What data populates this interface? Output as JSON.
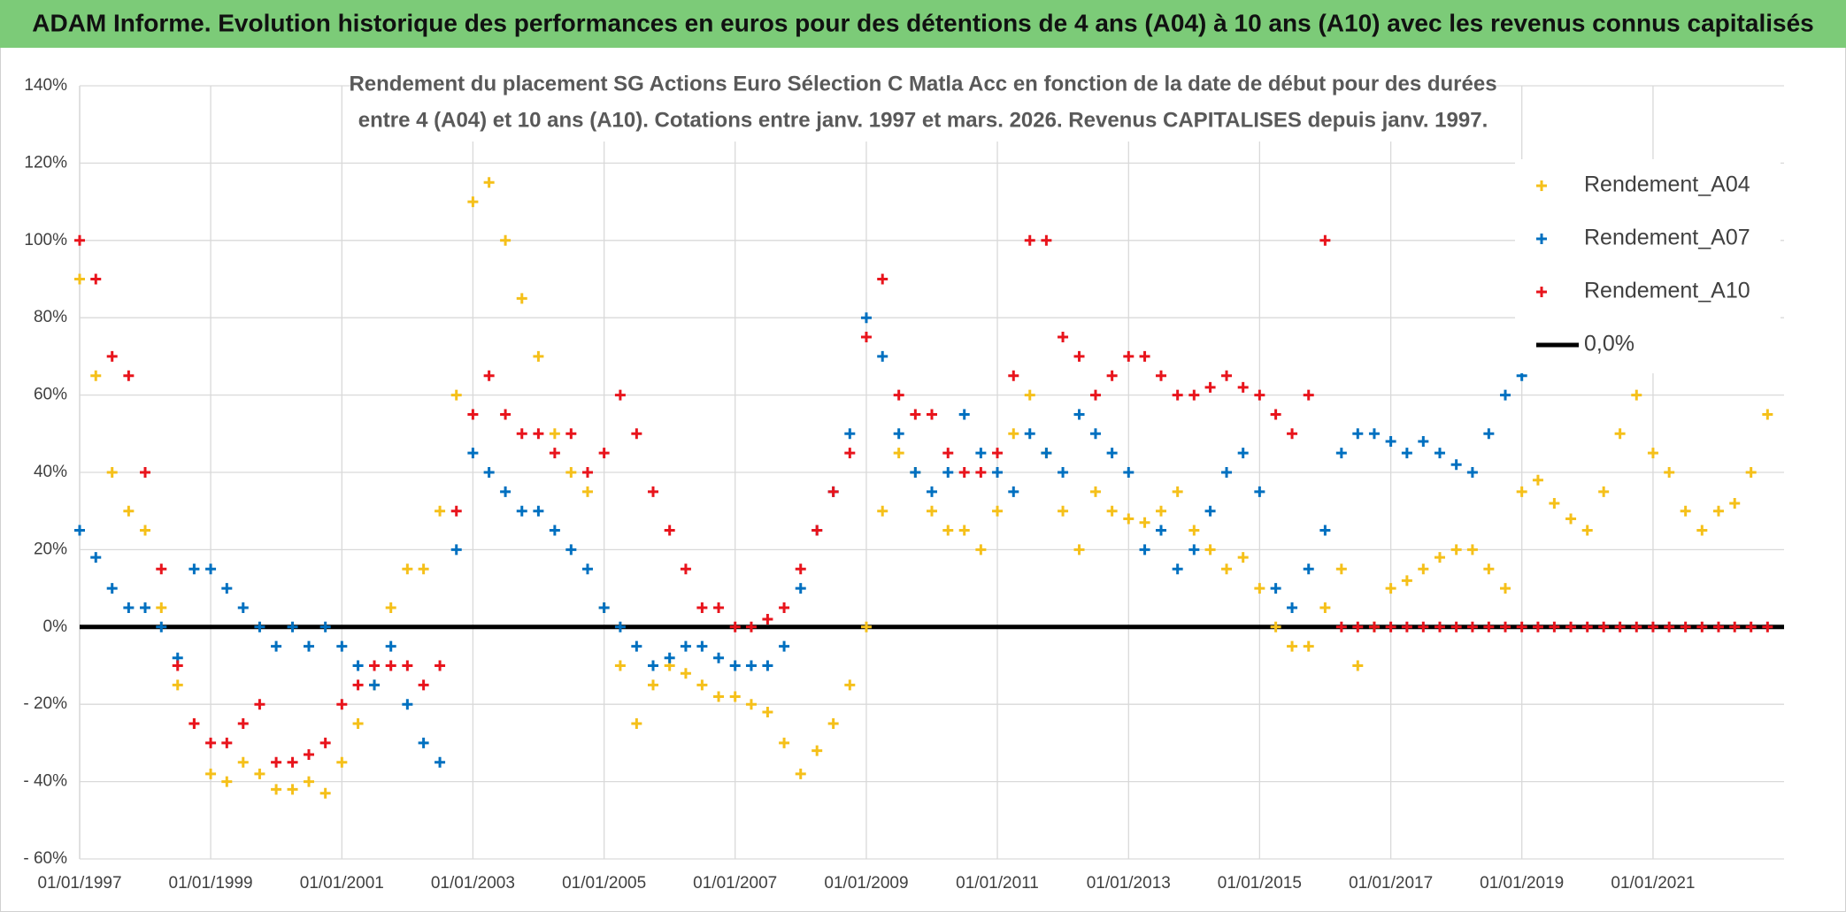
{
  "chart_data": {
    "type": "scatter",
    "title": "ADAM Informe. Evolution historique des performances en euros pour des détentions de 4 ans (A04) à 10 ans (A10) avec les revenus connus capitalisés",
    "subtitle": [
      "Rendement du placement SG Actions Euro Sélection C Matla Acc en fonction de la date de début pour des durées",
      "entre 4 (A04) et 10 ans (A10). Cotations entre janv. 1997 et mars. 2026. Revenus CAPITALISES depuis janv. 1997."
    ],
    "x": [
      "01/01/1997",
      "01/04/1997",
      "01/07/1997",
      "01/10/1997",
      "01/01/1998",
      "01/04/1998",
      "01/07/1998",
      "01/10/1998",
      "01/01/1999",
      "01/04/1999",
      "01/07/1999",
      "01/10/1999",
      "01/01/2000",
      "01/04/2000",
      "01/07/2000",
      "01/10/2000",
      "01/01/2001",
      "01/04/2001",
      "01/07/2001",
      "01/10/2001",
      "01/01/2002",
      "01/04/2002",
      "01/07/2002",
      "01/10/2002",
      "01/01/2003",
      "01/04/2003",
      "01/07/2003",
      "01/10/2003",
      "01/01/2004",
      "01/04/2004",
      "01/07/2004",
      "01/10/2004",
      "01/01/2005",
      "01/04/2005",
      "01/07/2005",
      "01/10/2005",
      "01/01/2006",
      "01/04/2006",
      "01/07/2006",
      "01/10/2006",
      "01/01/2007",
      "01/04/2007",
      "01/07/2007",
      "01/10/2007",
      "01/01/2008",
      "01/04/2008",
      "01/07/2008",
      "01/10/2008",
      "01/01/2009",
      "01/04/2009",
      "01/07/2009",
      "01/10/2009",
      "01/01/2010",
      "01/04/2010",
      "01/07/2010",
      "01/10/2010",
      "01/01/2011",
      "01/04/2011",
      "01/07/2011",
      "01/10/2011",
      "01/01/2012",
      "01/04/2012",
      "01/07/2012",
      "01/10/2012",
      "01/01/2013",
      "01/04/2013",
      "01/07/2013",
      "01/10/2013",
      "01/01/2014",
      "01/04/2014",
      "01/07/2014",
      "01/10/2014",
      "01/01/2015",
      "01/04/2015",
      "01/07/2015",
      "01/10/2015",
      "01/01/2016",
      "01/04/2016",
      "01/07/2016",
      "01/10/2016",
      "01/01/2017",
      "01/04/2017",
      "01/07/2017",
      "01/10/2017",
      "01/01/2018",
      "01/04/2018",
      "01/07/2018",
      "01/10/2018",
      "01/01/2019",
      "01/04/2019",
      "01/07/2019",
      "01/10/2019",
      "01/01/2020",
      "01/04/2020",
      "01/07/2020",
      "01/10/2020",
      "01/01/2021",
      "01/04/2021",
      "01/07/2021",
      "01/10/2021",
      "01/01/2022",
      "01/04/2022",
      "01/07/2022",
      "01/10/2022"
    ],
    "series": [
      {
        "name": "Rendement_A04",
        "color": "#f5c01a",
        "values": [
          90,
          65,
          40,
          30,
          25,
          5,
          -15,
          -25,
          -38,
          -40,
          -35,
          -38,
          -42,
          -42,
          -40,
          -43,
          -35,
          -25,
          -15,
          5,
          15,
          15,
          30,
          60,
          110,
          115,
          100,
          85,
          70,
          50,
          40,
          35,
          5,
          -10,
          -25,
          -15,
          -10,
          -12,
          -15,
          -18,
          -18,
          -20,
          -22,
          -30,
          -38,
          -32,
          -25,
          -15,
          0,
          30,
          45,
          40,
          30,
          25,
          25,
          20,
          30,
          50,
          60,
          45,
          30,
          20,
          35,
          30,
          28,
          27,
          30,
          35,
          25,
          20,
          15,
          18,
          10,
          0,
          -5,
          -5,
          5,
          15,
          -10,
          0,
          10,
          12,
          15,
          18,
          20,
          20,
          15,
          10,
          35,
          38,
          32,
          28,
          25,
          35,
          50,
          60,
          45,
          40,
          30,
          25,
          30,
          32,
          40,
          55
        ]
      },
      {
        "name": "Rendement_A07",
        "color": "#0070c0",
        "values": [
          25,
          18,
          10,
          5,
          5,
          0,
          -8,
          15,
          15,
          10,
          5,
          0,
          -5,
          0,
          -5,
          0,
          -5,
          -10,
          -15,
          -5,
          -20,
          -30,
          -35,
          20,
          45,
          40,
          35,
          30,
          30,
          25,
          20,
          15,
          5,
          0,
          -5,
          -10,
          -8,
          -5,
          -5,
          -8,
          -10,
          -10,
          -10,
          -5,
          10,
          25,
          35,
          50,
          80,
          70,
          50,
          40,
          35,
          40,
          55,
          45,
          40,
          35,
          50,
          45,
          40,
          55,
          50,
          45,
          40,
          20,
          25,
          15,
          20,
          30,
          40,
          45,
          35,
          10,
          5,
          15,
          25,
          45,
          50,
          50,
          48,
          45,
          48,
          45,
          42,
          40,
          50,
          60,
          65,
          null,
          null,
          null,
          null,
          null,
          null,
          null,
          null,
          null,
          null,
          null,
          null,
          null,
          null,
          null
        ]
      },
      {
        "name": "Rendement_A10",
        "color": "#e8141c",
        "values": [
          100,
          90,
          70,
          65,
          40,
          15,
          -10,
          -25,
          -30,
          -30,
          -25,
          -20,
          -35,
          -35,
          -33,
          -30,
          -20,
          -15,
          -10,
          -10,
          -10,
          -15,
          -10,
          30,
          55,
          65,
          55,
          50,
          50,
          45,
          50,
          40,
          45,
          60,
          50,
          35,
          25,
          15,
          5,
          5,
          0,
          0,
          2,
          5,
          15,
          25,
          35,
          45,
          75,
          90,
          60,
          55,
          55,
          45,
          40,
          40,
          45,
          65,
          100,
          100,
          75,
          70,
          60,
          65,
          70,
          70,
          65,
          60,
          60,
          62,
          65,
          62,
          60,
          55,
          50,
          60,
          100,
          0,
          0,
          0,
          0,
          0,
          0,
          0,
          0,
          0,
          0,
          0,
          0,
          0,
          0,
          0,
          0,
          0,
          0,
          0,
          0,
          0,
          0,
          0,
          0,
          0,
          0,
          0
        ]
      }
    ],
    "reference_line": {
      "name": "0,0%",
      "value": 0,
      "color": "#000000"
    },
    "xlim": [
      "01/01/1997",
      "01/01/2023"
    ],
    "xticks": [
      "01/01/1997",
      "01/01/1999",
      "01/01/2001",
      "01/01/2003",
      "01/01/2005",
      "01/01/2007",
      "01/01/2009",
      "01/01/2011",
      "01/01/2013",
      "01/01/2015",
      "01/01/2017",
      "01/01/2019",
      "01/01/2021"
    ],
    "ylim": [
      -60,
      140
    ],
    "yticks": [
      {
        "value": -60,
        "label": "- 60%"
      },
      {
        "value": -40,
        "label": "- 40%"
      },
      {
        "value": -20,
        "label": "- 20%"
      },
      {
        "value": 0,
        "label": "0%"
      },
      {
        "value": 20,
        "label": "20%"
      },
      {
        "value": 40,
        "label": "40%"
      },
      {
        "value": 60,
        "label": "60%"
      },
      {
        "value": 80,
        "label": "80%"
      },
      {
        "value": 100,
        "label": "100%"
      },
      {
        "value": 120,
        "label": "120%"
      },
      {
        "value": 140,
        "label": "140%"
      }
    ],
    "grid": true,
    "legend": "upper right"
  }
}
